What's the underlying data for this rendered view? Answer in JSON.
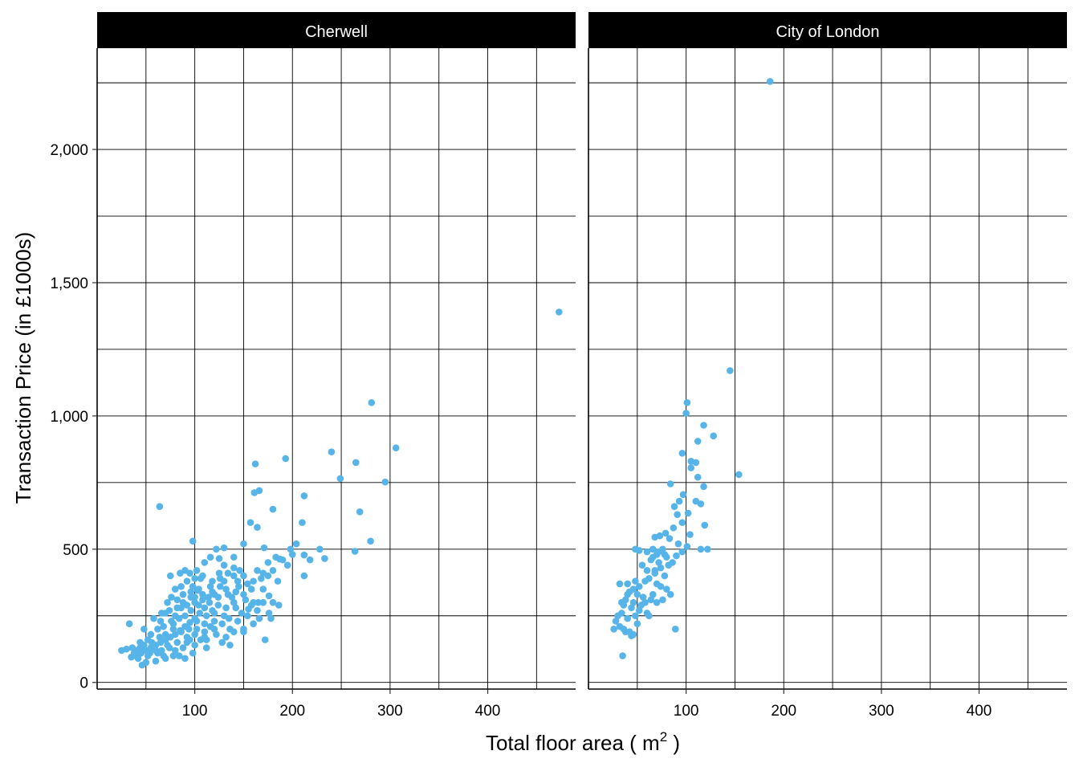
{
  "chart_data": {
    "type": "scatter",
    "xlabel": "Total floor area ( m",
    "xlabel_superscript": "2",
    "xlabel_suffix": " )",
    "ylabel": "Transaction Price (in £1000s)",
    "xlim": [
      0,
      490
    ],
    "ylim": [
      -25,
      2380
    ],
    "x_ticks": [
      100,
      200,
      300,
      400
    ],
    "x_tick_labels": [
      "100",
      "200",
      "300",
      "400"
    ],
    "y_ticks": [
      0,
      500,
      1000,
      1500,
      2000
    ],
    "y_tick_labels": [
      "0",
      "500",
      "1,000",
      "1,500",
      "2,000"
    ],
    "grid": true,
    "point_color": "#56B4E9",
    "strip_color": "#000000",
    "panels": [
      {
        "title": "Cherwell",
        "points": [
          [
            473,
            1390
          ],
          [
            281,
            1050
          ],
          [
            306,
            880
          ],
          [
            193,
            840
          ],
          [
            240,
            865
          ],
          [
            265,
            825
          ],
          [
            162,
            820
          ],
          [
            249,
            765
          ],
          [
            295,
            752
          ],
          [
            166,
            720
          ],
          [
            161,
            712
          ],
          [
            64,
            660
          ],
          [
            212,
            700
          ],
          [
            269,
            640
          ],
          [
            180,
            650
          ],
          [
            210,
            600
          ],
          [
            157,
            600
          ],
          [
            164,
            582
          ],
          [
            280,
            530
          ],
          [
            98,
            530
          ],
          [
            264,
            492
          ],
          [
            233,
            465
          ],
          [
            228,
            500
          ],
          [
            212,
            400
          ],
          [
            187,
            463
          ],
          [
            212,
            478
          ],
          [
            204,
            520
          ],
          [
            198,
            500
          ],
          [
            175,
            450
          ],
          [
            171,
            505
          ],
          [
            150,
            520
          ],
          [
            130,
            505
          ],
          [
            125,
            465
          ],
          [
            185,
            380
          ],
          [
            176,
            325
          ],
          [
            165,
            300
          ],
          [
            155,
            275
          ],
          [
            148,
            260
          ],
          [
            135,
            240
          ],
          [
            120,
            330
          ],
          [
            115,
            300
          ],
          [
            110,
            280
          ],
          [
            105,
            260
          ],
          [
            100,
            240
          ],
          [
            95,
            225
          ],
          [
            90,
            210
          ],
          [
            85,
            195
          ],
          [
            80,
            180
          ],
          [
            75,
            170
          ],
          [
            70,
            160
          ],
          [
            65,
            150
          ],
          [
            60,
            140
          ],
          [
            55,
            130
          ],
          [
            50,
            120
          ],
          [
            45,
            110
          ],
          [
            40,
            100
          ],
          [
            35,
            95
          ],
          [
            30,
            125
          ],
          [
            25,
            120
          ],
          [
            33,
            220
          ],
          [
            178,
            240
          ],
          [
            172,
            160
          ],
          [
            92,
            380
          ],
          [
            100,
            390
          ],
          [
            110,
            450
          ],
          [
            140,
            430
          ],
          [
            103,
            345
          ],
          [
            85,
            410
          ],
          [
            75,
            400
          ],
          [
            90,
            420
          ],
          [
            130,
            380
          ],
          [
            145,
            360
          ],
          [
            160,
            300
          ],
          [
            150,
            190
          ],
          [
            120,
            200
          ],
          [
            110,
            170
          ],
          [
            128,
            150
          ],
          [
            136,
            140
          ],
          [
            112,
            130
          ],
          [
            98,
            110
          ],
          [
            84,
            100
          ],
          [
            70,
            90
          ],
          [
            60,
            80
          ],
          [
            50,
            75
          ],
          [
            46,
            65
          ],
          [
            42,
            90
          ],
          [
            55,
            180
          ],
          [
            48,
            200
          ],
          [
            62,
            200
          ],
          [
            58,
            240
          ],
          [
            66,
            260
          ],
          [
            72,
            300
          ],
          [
            80,
            250
          ],
          [
            88,
            300
          ],
          [
            96,
            320
          ],
          [
            104,
            350
          ],
          [
            118,
            380
          ],
          [
            126,
            360
          ],
          [
            138,
            320
          ],
          [
            142,
            280
          ],
          [
            152,
            310
          ],
          [
            158,
            350
          ],
          [
            168,
            390
          ],
          [
            180,
            420
          ],
          [
            190,
            460
          ],
          [
            195,
            440
          ],
          [
            116,
            470
          ],
          [
            122,
            500
          ],
          [
            140,
            470
          ],
          [
            146,
            420
          ],
          [
            125,
            410
          ],
          [
            108,
            400
          ],
          [
            96,
            340
          ],
          [
            86,
            280
          ],
          [
            76,
            230
          ],
          [
            68,
            210
          ],
          [
            64,
            170
          ],
          [
            56,
            150
          ],
          [
            52,
            160
          ],
          [
            38,
            110
          ],
          [
            44,
            130
          ],
          [
            78,
            200
          ],
          [
            82,
            150
          ],
          [
            92,
            170
          ],
          [
            102,
            200
          ],
          [
            110,
            220
          ],
          [
            120,
            260
          ],
          [
            132,
            280
          ],
          [
            140,
            300
          ],
          [
            158,
            290
          ],
          [
            170,
            410
          ],
          [
            183,
            470
          ],
          [
            200,
            480
          ],
          [
            218,
            460
          ],
          [
            92,
            150
          ],
          [
            100,
            180
          ],
          [
            106,
            160
          ],
          [
            112,
            250
          ],
          [
            120,
            230
          ],
          [
            130,
            250
          ],
          [
            66,
            120
          ],
          [
            74,
            130
          ],
          [
            80,
            120
          ],
          [
            88,
            130
          ],
          [
            95,
            160
          ],
          [
            104,
            290
          ],
          [
            114,
            320
          ],
          [
            124,
            290
          ],
          [
            134,
            330
          ],
          [
            100,
            300
          ],
          [
            96,
            270
          ],
          [
            84,
            240
          ],
          [
            72,
            140
          ],
          [
            62,
            110
          ],
          [
            52,
            100
          ],
          [
            58,
            130
          ],
          [
            70,
            180
          ],
          [
            78,
            220
          ],
          [
            90,
            250
          ],
          [
            108,
            310
          ],
          [
            118,
            270
          ],
          [
            128,
            220
          ],
          [
            136,
            200
          ],
          [
            144,
            230
          ],
          [
            154,
            250
          ],
          [
            164,
            270
          ],
          [
            170,
            300
          ],
          [
            82,
            310
          ],
          [
            76,
            320
          ],
          [
            70,
            260
          ],
          [
            86,
            190
          ],
          [
            94,
            200
          ],
          [
            102,
            230
          ],
          [
            110,
            190
          ],
          [
            116,
            210
          ],
          [
            90,
            90
          ],
          [
            78,
            100
          ],
          [
            68,
            100
          ],
          [
            60,
            120
          ],
          [
            54,
            110
          ],
          [
            48,
            140
          ],
          [
            40,
            120
          ],
          [
            36,
            130
          ],
          [
            44,
            150
          ],
          [
            100,
            140
          ],
          [
            112,
            160
          ],
          [
            122,
            180
          ],
          [
            132,
            170
          ],
          [
            140,
            190
          ],
          [
            150,
            200
          ],
          [
            160,
            220
          ],
          [
            166,
            240
          ],
          [
            176,
            260
          ],
          [
            186,
            290
          ],
          [
            150,
            330
          ],
          [
            142,
            340
          ],
          [
            132,
            350
          ],
          [
            124,
            320
          ],
          [
            160,
            380
          ],
          [
            150,
            400
          ],
          [
            140,
            400
          ],
          [
            130,
            440
          ],
          [
            170,
            350
          ],
          [
            180,
            300
          ],
          [
            175,
            400
          ],
          [
            118,
            340
          ],
          [
            106,
            390
          ],
          [
            98,
            360
          ],
          [
            88,
            330
          ],
          [
            80,
            350
          ],
          [
            95,
            410
          ],
          [
            102,
            420
          ],
          [
            86,
            360
          ],
          [
            65,
            230
          ],
          [
            74,
            270
          ],
          [
            82,
            280
          ],
          [
            92,
            290
          ],
          [
            100,
            320
          ],
          [
            108,
            330
          ],
          [
            116,
            360
          ],
          [
            126,
            390
          ],
          [
            134,
            410
          ],
          [
            144,
            380
          ],
          [
            154,
            370
          ],
          [
            164,
            420
          ]
        ]
      },
      {
        "title": "City of London",
        "points": [
          [
            186,
            2255
          ],
          [
            145,
            1170
          ],
          [
            101,
            1050
          ],
          [
            100,
            1010
          ],
          [
            118,
            965
          ],
          [
            128,
            925
          ],
          [
            112,
            905
          ],
          [
            96,
            860
          ],
          [
            105,
            830
          ],
          [
            110,
            825
          ],
          [
            154,
            780
          ],
          [
            105,
            805
          ],
          [
            112,
            770
          ],
          [
            84,
            745
          ],
          [
            118,
            735
          ],
          [
            97,
            705
          ],
          [
            93,
            680
          ],
          [
            110,
            680
          ],
          [
            115,
            670
          ],
          [
            88,
            660
          ],
          [
            91,
            630
          ],
          [
            102,
            635
          ],
          [
            96,
            600
          ],
          [
            119,
            590
          ],
          [
            87,
            580
          ],
          [
            79,
            560
          ],
          [
            68,
            545
          ],
          [
            73,
            550
          ],
          [
            104,
            555
          ],
          [
            83,
            540
          ],
          [
            92,
            520
          ],
          [
            101,
            510
          ],
          [
            115,
            500
          ],
          [
            122,
            500
          ],
          [
            76,
            500
          ],
          [
            66,
            500
          ],
          [
            48,
            500
          ],
          [
            52,
            495
          ],
          [
            60,
            490
          ],
          [
            70,
            480
          ],
          [
            80,
            470
          ],
          [
            90,
            475
          ],
          [
            64,
            460
          ],
          [
            72,
            450
          ],
          [
            82,
            440
          ],
          [
            55,
            440
          ],
          [
            60,
            420
          ],
          [
            68,
            410
          ],
          [
            78,
            400
          ],
          [
            62,
            390
          ],
          [
            58,
            380
          ],
          [
            48,
            380
          ],
          [
            52,
            360
          ],
          [
            70,
            370
          ],
          [
            74,
            360
          ],
          [
            80,
            350
          ],
          [
            40,
            370
          ],
          [
            32,
            370
          ],
          [
            42,
            340
          ],
          [
            50,
            330
          ],
          [
            56,
            320
          ],
          [
            64,
            310
          ],
          [
            58,
            300
          ],
          [
            46,
            300
          ],
          [
            38,
            310
          ],
          [
            36,
            290
          ],
          [
            44,
            280
          ],
          [
            52,
            270
          ],
          [
            60,
            260
          ],
          [
            34,
            260
          ],
          [
            30,
            250
          ],
          [
            40,
            240
          ],
          [
            48,
            250
          ],
          [
            62,
            250
          ],
          [
            28,
            230
          ],
          [
            32,
            210
          ],
          [
            26,
            200
          ],
          [
            36,
            200
          ],
          [
            42,
            190
          ],
          [
            46,
            180
          ],
          [
            38,
            190
          ],
          [
            89,
            200
          ],
          [
            35,
            100
          ],
          [
            44,
            175
          ],
          [
            50,
            220
          ],
          [
            66,
            330
          ],
          [
            70,
            300
          ],
          [
            76,
            310
          ],
          [
            84,
            330
          ],
          [
            68,
            420
          ],
          [
            74,
            430
          ],
          [
            86,
            450
          ],
          [
            96,
            490
          ],
          [
            66,
            470
          ],
          [
            72,
            490
          ],
          [
            78,
            480
          ],
          [
            54,
            290
          ],
          [
            40,
            330
          ],
          [
            46,
            350
          ],
          [
            34,
            300
          ]
        ]
      }
    ]
  }
}
